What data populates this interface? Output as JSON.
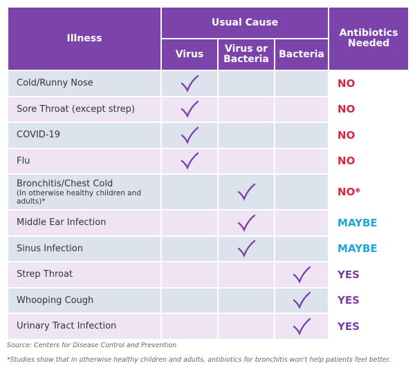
{
  "header": {
    "illness": "Illness",
    "usual_cause": "Usual Cause",
    "causes": [
      "Virus",
      "Virus or Bacteria",
      "Bacteria"
    ],
    "antibiotics": "Antibiotics Needed"
  },
  "table": {
    "rows": [
      {
        "illness": "Cold/Runny Nose",
        "checks": [
          true,
          false,
          false
        ],
        "antibiotics": "NO",
        "tone": "no"
      },
      {
        "illness": "Sore Throat (except strep)",
        "checks": [
          true,
          false,
          false
        ],
        "antibiotics": "NO",
        "tone": "no"
      },
      {
        "illness": "COVID-19",
        "checks": [
          true,
          false,
          false
        ],
        "antibiotics": "NO",
        "tone": "no"
      },
      {
        "illness": "Flu",
        "checks": [
          true,
          false,
          false
        ],
        "antibiotics": "NO",
        "tone": "no"
      },
      {
        "illness": "Bronchitis/Chest Cold",
        "note": "(In otherwise healthy children and adults)*",
        "checks": [
          false,
          true,
          false
        ],
        "antibiotics": "NO*",
        "tone": "no"
      },
      {
        "illness": "Middle Ear Infection",
        "checks": [
          false,
          true,
          false
        ],
        "antibiotics": "MAYBE",
        "tone": "maybe"
      },
      {
        "illness": "Sinus Infection",
        "checks": [
          false,
          true,
          false
        ],
        "antibiotics": "MAYBE",
        "tone": "maybe"
      },
      {
        "illness": "Strep Throat",
        "checks": [
          false,
          false,
          true
        ],
        "antibiotics": "YES",
        "tone": "yes"
      },
      {
        "illness": "Whooping Cough",
        "checks": [
          false,
          false,
          true
        ],
        "antibiotics": "YES",
        "tone": "yes"
      },
      {
        "illness": "Urinary Tract Infection",
        "checks": [
          false,
          false,
          true
        ],
        "antibiotics": "YES",
        "tone": "yes"
      }
    ]
  },
  "footer": {
    "source": "Source: Centers for Disease Control and Prevention",
    "footnote": "*Studies show that in otherwise healthy children and adults, antibiotics for bronchitis won't help patients feel better."
  }
}
